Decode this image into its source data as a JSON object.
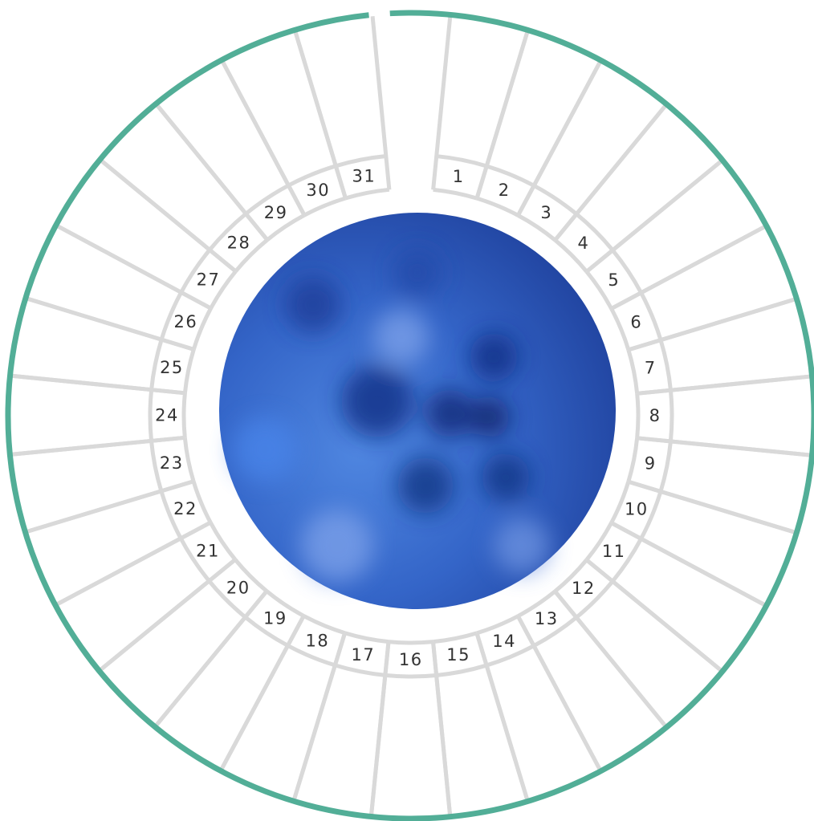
{
  "days": [
    1,
    2,
    3,
    4,
    5,
    6,
    7,
    8,
    9,
    10,
    11,
    12,
    13,
    14,
    15,
    16,
    17,
    18,
    19,
    20,
    21,
    22,
    23,
    24,
    25,
    26,
    27,
    28,
    29,
    30,
    31
  ]
}
